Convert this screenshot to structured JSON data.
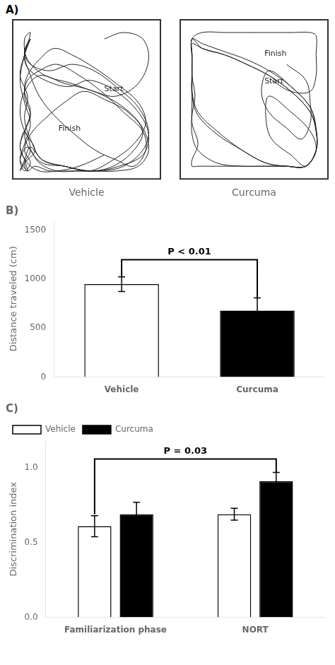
{
  "chart_data": [
    {
      "type": "line",
      "title": "A)",
      "xlim": [
        0,
        1
      ],
      "ylim": [
        0,
        1
      ],
      "tick_labels": false,
      "grid": false,
      "series": [
        {
          "name": "Vehicle",
          "x": [
            0.62,
            0.75,
            0.88,
            0.92,
            0.85,
            0.7,
            0.55,
            0.4,
            0.22,
            0.1,
            0.08,
            0.12,
            0.08,
            0.05,
            0.08,
            0.12,
            0.08,
            0.05,
            0.1,
            0.08,
            0.05,
            0.08,
            0.12,
            0.08,
            0.1,
            0.15,
            0.25,
            0.38,
            0.55,
            0.7,
            0.85,
            0.92,
            0.88,
            0.75,
            0.55,
            0.35,
            0.18,
            0.08,
            0.05,
            0.08,
            0.15,
            0.08,
            0.05,
            0.08,
            0.12,
            0.2,
            0.35,
            0.55,
            0.72,
            0.88,
            0.92,
            0.85,
            0.7,
            0.52,
            0.38,
            0.22,
            0.1,
            0.08,
            0.12,
            0.08,
            0.05,
            0.1,
            0.08,
            0.12,
            0.2,
            0.35,
            0.52,
            0.68,
            0.82,
            0.88,
            0.78,
            0.62,
            0.48,
            0.35,
            0.22,
            0.12,
            0.08,
            0.12,
            0.08,
            0.05,
            0.1,
            0.18,
            0.3,
            0.45,
            0.6,
            0.75,
            0.88,
            0.92,
            0.85,
            0.7,
            0.55,
            0.4,
            0.25,
            0.12,
            0.08,
            0.12,
            0.08,
            0.12,
            0.18,
            0.28,
            0.42,
            0.56,
            0.7,
            0.82,
            0.9,
            0.88,
            0.75,
            0.6,
            0.45,
            0.3,
            0.18,
            0.1,
            0.08,
            0.12,
            0.08,
            0.12,
            0.2,
            0.35,
            0.52,
            0.68,
            0.82,
            0.9,
            0.85,
            0.7,
            0.55,
            0.4,
            0.28,
            0.18,
            0.1,
            0.08,
            0.12,
            0.08,
            0.05,
            0.1,
            0.18,
            0.3,
            0.45,
            0.62
          ],
          "values": [
            0.88,
            0.92,
            0.88,
            0.75,
            0.6,
            0.52,
            0.55,
            0.6,
            0.65,
            0.75,
            0.88,
            0.92,
            0.78,
            0.62,
            0.48,
            0.35,
            0.22,
            0.12,
            0.05,
            0.12,
            0.2,
            0.3,
            0.18,
            0.1,
            0.05,
            0.08,
            0.05,
            0.05,
            0.05,
            0.05,
            0.08,
            0.18,
            0.32,
            0.45,
            0.55,
            0.6,
            0.65,
            0.55,
            0.42,
            0.3,
            0.18,
            0.1,
            0.05,
            0.12,
            0.2,
            0.12,
            0.08,
            0.05,
            0.08,
            0.15,
            0.28,
            0.42,
            0.55,
            0.62,
            0.58,
            0.62,
            0.7,
            0.8,
            0.88,
            0.78,
            0.65,
            0.52,
            0.38,
            0.25,
            0.12,
            0.08,
            0.05,
            0.08,
            0.18,
            0.3,
            0.42,
            0.5,
            0.55,
            0.48,
            0.38,
            0.28,
            0.18,
            0.1,
            0.05,
            0.12,
            0.2,
            0.1,
            0.05,
            0.05,
            0.05,
            0.08,
            0.18,
            0.3,
            0.45,
            0.58,
            0.68,
            0.72,
            0.68,
            0.72,
            0.8,
            0.88,
            0.78,
            0.65,
            0.52,
            0.4,
            0.28,
            0.18,
            0.12,
            0.08,
            0.18,
            0.3,
            0.42,
            0.55,
            0.65,
            0.72,
            0.68,
            0.62,
            0.52,
            0.4,
            0.28,
            0.18,
            0.1,
            0.08,
            0.05,
            0.12,
            0.22,
            0.35,
            0.48,
            0.6,
            0.7,
            0.78,
            0.82,
            0.75,
            0.65,
            0.55,
            0.42,
            0.3,
            0.2,
            0.1,
            0.05,
            0.05,
            0.08,
            0.15
          ]
        },
        {
          "name": "Curcuma",
          "x": [
            0.62,
            0.75,
            0.88,
            0.92,
            0.92,
            0.92,
            0.88,
            0.75,
            0.6,
            0.45,
            0.3,
            0.15,
            0.08,
            0.08,
            0.08,
            0.08,
            0.08,
            0.12,
            0.08,
            0.08,
            0.12,
            0.25,
            0.42,
            0.58,
            0.72,
            0.85,
            0.92,
            0.92,
            0.88,
            0.75,
            0.6,
            0.45,
            0.3,
            0.15,
            0.08,
            0.08,
            0.08,
            0.08,
            0.12,
            0.25,
            0.42,
            0.58,
            0.72,
            0.85,
            0.92,
            0.92,
            0.88,
            0.75,
            0.6,
            0.45,
            0.3,
            0.15,
            0.08,
            0.08,
            0.08,
            0.1,
            0.08,
            0.08,
            0.12,
            0.25,
            0.42,
            0.58,
            0.72,
            0.85,
            0.92,
            0.88,
            0.75,
            0.6,
            0.58,
            0.62,
            0.75,
            0.85,
            0.92,
            0.92,
            0.88,
            0.75,
            0.6,
            0.45,
            0.3,
            0.15,
            0.08,
            0.08,
            0.08,
            0.08,
            0.12,
            0.25,
            0.42,
            0.58,
            0.72,
            0.85,
            0.92,
            0.92,
            0.88,
            0.75,
            0.6,
            0.55,
            0.6,
            0.72,
            0.82,
            0.88,
            0.88,
            0.85,
            0.72
          ],
          "values": [
            0.62,
            0.55,
            0.55,
            0.65,
            0.78,
            0.9,
            0.92,
            0.92,
            0.92,
            0.92,
            0.92,
            0.92,
            0.88,
            0.75,
            0.62,
            0.48,
            0.35,
            0.22,
            0.12,
            0.08,
            0.08,
            0.08,
            0.08,
            0.08,
            0.08,
            0.08,
            0.18,
            0.3,
            0.42,
            0.55,
            0.65,
            0.72,
            0.78,
            0.82,
            0.85,
            0.78,
            0.68,
            0.55,
            0.42,
            0.3,
            0.18,
            0.1,
            0.08,
            0.08,
            0.18,
            0.3,
            0.42,
            0.55,
            0.65,
            0.72,
            0.78,
            0.82,
            0.88,
            0.78,
            0.65,
            0.52,
            0.4,
            0.28,
            0.18,
            0.1,
            0.08,
            0.08,
            0.08,
            0.08,
            0.18,
            0.3,
            0.42,
            0.52,
            0.38,
            0.25,
            0.15,
            0.08,
            0.18,
            0.3,
            0.45,
            0.58,
            0.68,
            0.75,
            0.8,
            0.85,
            0.88,
            0.78,
            0.65,
            0.52,
            0.4,
            0.28,
            0.18,
            0.1,
            0.08,
            0.08,
            0.18,
            0.32,
            0.45,
            0.58,
            0.68,
            0.55,
            0.42,
            0.32,
            0.25,
            0.35,
            0.48,
            0.62,
            0.72
          ]
        }
      ],
      "annotations": [
        {
          "series": "Vehicle",
          "text": "Start",
          "x": 0.62,
          "y": 0.54
        },
        {
          "series": "Vehicle",
          "text": "Finish",
          "x": 0.31,
          "y": 0.29
        },
        {
          "series": "Curcuma",
          "text": "Finish",
          "x": 0.57,
          "y": 0.76
        },
        {
          "series": "Curcuma",
          "text": "Start",
          "x": 0.57,
          "y": 0.59
        }
      ]
    },
    {
      "type": "bar",
      "title": "B)",
      "categories": [
        "Vehicle",
        "Curcuma"
      ],
      "values": [
        950,
        680
      ],
      "errors": [
        75,
        130
      ],
      "colors": [
        "white",
        "black"
      ],
      "ylabel": "Distance traveled (cm)",
      "ylim": [
        0,
        1600
      ],
      "yticks": [
        0,
        500,
        1000,
        1500
      ],
      "grid": false,
      "bracket": {
        "from": {
          "category": "Vehicle"
        },
        "to": {
          "category": "Curcuma"
        },
        "y": 1200,
        "feet": [
          1025,
          800
        ],
        "text": "P < 0.01"
      }
    },
    {
      "type": "bar",
      "title": "C)",
      "categories": [
        "Familiarization phase",
        "NORT"
      ],
      "series": [
        {
          "name": "Vehicle",
          "color": "white",
          "values": [
            0.61,
            0.69
          ],
          "errors": [
            0.07,
            0.04
          ]
        },
        {
          "name": "Curcuma",
          "color": "black",
          "values": [
            0.69,
            0.91
          ],
          "errors": [
            0.08,
            0.06
          ]
        }
      ],
      "ylabel": "Discrimination index",
      "ylim": [
        0.0,
        1.18
      ],
      "yticks": [
        {
          "value": 0,
          "label": "0.0"
        },
        0.5,
        {
          "value": 1,
          "label": "1.0"
        }
      ],
      "grid": false,
      "legend": "upper left",
      "bracket": {
        "from": {
          "series": "Vehicle",
          "category": "Familiarization phase"
        },
        "to": {
          "series": "Curcuma",
          "category": "NORT"
        },
        "y": 1.06,
        "feet": [
          0.69,
          0.97
        ],
        "text": "P = 0.03"
      }
    }
  ]
}
